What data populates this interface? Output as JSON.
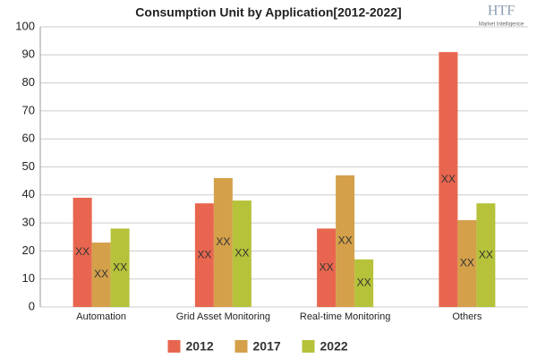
{
  "logo": {
    "name": "HTF",
    "tagline": "Market Intelligence"
  },
  "chart_data": {
    "type": "bar",
    "title": "Consumption Unit by  Application[2012-2022]",
    "categories": [
      "Automation",
      "Grid Asset Monitoring",
      "Real-time Monitoring",
      "Others"
    ],
    "series": [
      {
        "name": "2012",
        "color": "#e8664f",
        "values": [
          39,
          37,
          28,
          91
        ],
        "value_labels": [
          "XX",
          "XX",
          "XX",
          "XX"
        ]
      },
      {
        "name": "2017",
        "color": "#d4a04a",
        "values": [
          23,
          46,
          47,
          31
        ],
        "value_labels": [
          "XX",
          "XX",
          "XX",
          "XX"
        ]
      },
      {
        "name": "2022",
        "color": "#b5c23a",
        "values": [
          28,
          38,
          17,
          37
        ],
        "value_labels": [
          "XX",
          "XX",
          "XX",
          "XX"
        ]
      }
    ],
    "ylim": [
      0,
      100
    ],
    "yticks": [
      0,
      10,
      20,
      30,
      40,
      50,
      60,
      70,
      80,
      90,
      100
    ],
    "grid": true,
    "legend": "bottom"
  }
}
